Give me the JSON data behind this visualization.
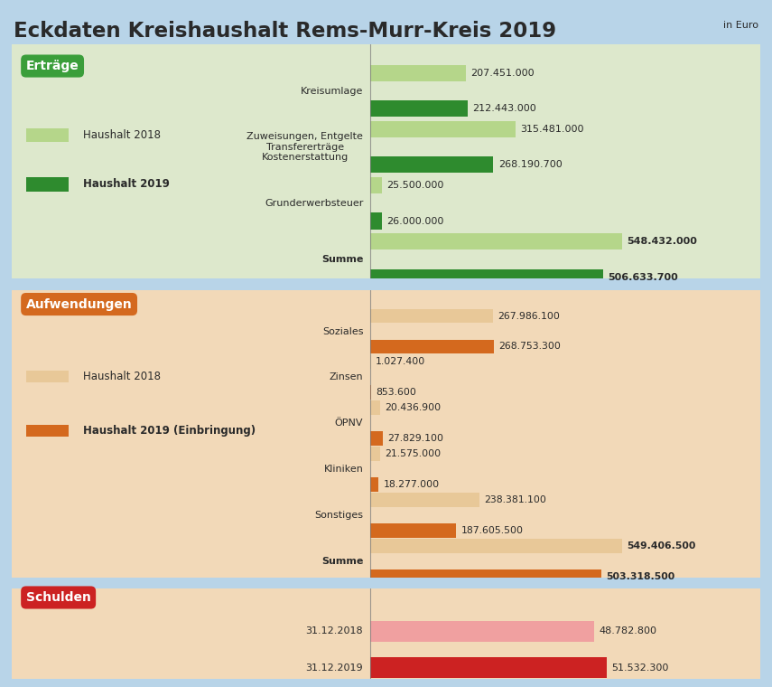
{
  "title": "Eckdaten Kreishaushalt Rems-Murr-Kreis 2019",
  "subtitle": "in Euro",
  "bg_color": "#b8d4e8",
  "ertraege": {
    "section_label": "Erträge",
    "section_label_bg": "#3a9e3a",
    "section_label_color": "white",
    "bg_color": "#dde8cc",
    "legend_2018": "Haushalt 2018",
    "legend_2019": "Haushalt 2019",
    "color_2018": "#b5d68a",
    "color_2019": "#2e8b2e",
    "categories": [
      "Kreisumlage",
      "Zuweisungen, Entgelte\nTransfererträge\nKostenerstattung",
      "Grunderwerbsteuer",
      "Summe"
    ],
    "values_2018": [
      207451000,
      315481000,
      25500000,
      548432000
    ],
    "values_2019": [
      212443000,
      268190700,
      26000000,
      506633700
    ],
    "labels_2018": [
      "207.451.000",
      "315.481.000",
      "25.500.000",
      "548.432.000"
    ],
    "labels_2019": [
      "212.443.000",
      "268.190.700",
      "26.000.000",
      "506.633.700"
    ],
    "summe_bold": [
      false,
      false,
      false,
      true
    ]
  },
  "aufwendungen": {
    "section_label": "Aufwendungen",
    "section_label_bg": "#d4691e",
    "section_label_color": "white",
    "bg_color": "#f2d9b8",
    "legend_2018": "Haushalt 2018",
    "legend_2019": "Haushalt 2019 (Einbringung)",
    "color_2018": "#e8c898",
    "color_2019": "#d4691e",
    "categories": [
      "Soziales",
      "Zinsen",
      "ÖPNV",
      "Kliniken",
      "Sonstiges",
      "Summe"
    ],
    "values_2018": [
      267986100,
      1027400,
      20436900,
      21575000,
      238381100,
      549406500
    ],
    "values_2019": [
      268753300,
      853600,
      27829100,
      18277000,
      187605500,
      503318500
    ],
    "labels_2018": [
      "267.986.100",
      "1.027.400",
      "20.436.900",
      "21.575.000",
      "238.381.100",
      "549.406.500"
    ],
    "labels_2019": [
      "268.753.300",
      "853.600",
      "27.829.100",
      "18.277.000",
      "187.605.500",
      "503.318.500"
    ],
    "summe_bold": [
      false,
      false,
      false,
      false,
      false,
      true
    ]
  },
  "schulden": {
    "section_label": "Schulden",
    "section_label_bg": "#cc2222",
    "section_label_color": "white",
    "bg_color": "#f2d9b8",
    "color_2018": "#f0a0a0",
    "color_2019": "#cc2222",
    "categories": [
      "31.12.2018",
      "31.12.2019"
    ],
    "values": [
      48782800,
      51532300
    ],
    "labels": [
      "48.782.800",
      "51.532.300"
    ],
    "colors": [
      "#f0a0a0",
      "#cc2222"
    ]
  }
}
